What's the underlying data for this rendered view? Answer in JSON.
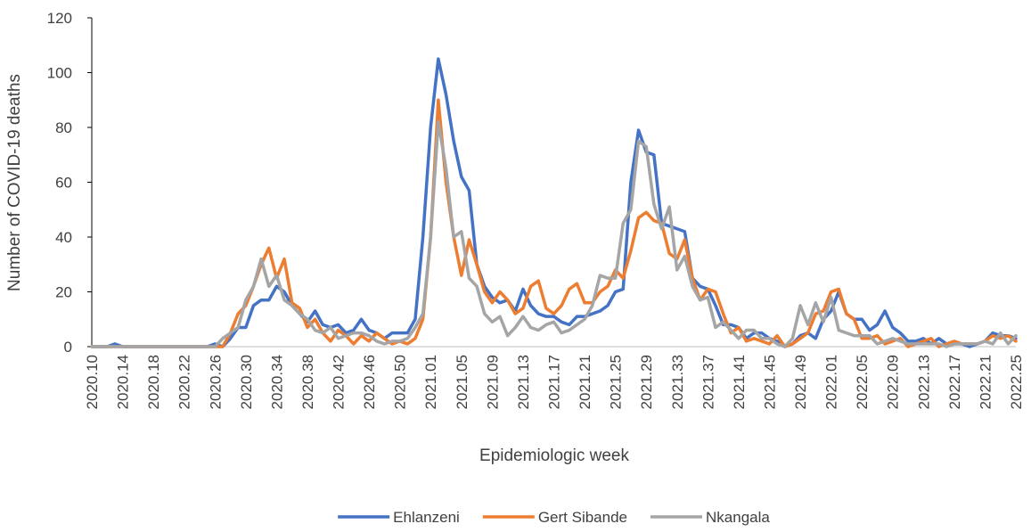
{
  "chart_data": {
    "type": "line",
    "x_label": "Epidemiologic week",
    "y_label": "Number of COVID-19 deaths",
    "categories": [
      "2020.10",
      null,
      null,
      null,
      "2020.14",
      null,
      null,
      null,
      "2020.18",
      null,
      null,
      null,
      "2020.22",
      null,
      null,
      null,
      "2020.26",
      null,
      null,
      null,
      "2020.30",
      null,
      null,
      null,
      "2020.34",
      null,
      null,
      null,
      "2020.38",
      null,
      null,
      null,
      "2020.42",
      null,
      null,
      null,
      "2020.46",
      null,
      null,
      null,
      "2020.50",
      null,
      null,
      null,
      "2021.01",
      null,
      null,
      null,
      "2021.05",
      null,
      null,
      null,
      "2021.09",
      null,
      null,
      null,
      "2021.13",
      null,
      null,
      null,
      "2021.17",
      null,
      null,
      null,
      "2021.21",
      null,
      null,
      null,
      "2021.25",
      null,
      null,
      null,
      "2021.29",
      null,
      null,
      null,
      "2021.33",
      null,
      null,
      null,
      "2021.37",
      null,
      null,
      null,
      "2021.41",
      null,
      null,
      null,
      "2021.45",
      null,
      null,
      null,
      "2021.49",
      null,
      null,
      null,
      "2022.01",
      null,
      null,
      null,
      "2022.05",
      null,
      null,
      null,
      "2022.09",
      null,
      null,
      null,
      "2022.13",
      null,
      null,
      null,
      "2022.17",
      null,
      null,
      null,
      "2022.21",
      null,
      null,
      null,
      "2022.25"
    ],
    "series": [
      {
        "name": "Ehlanzeni",
        "color": "#4472c4",
        "values": [
          0,
          0,
          0,
          1,
          0,
          0,
          0,
          0,
          0,
          0,
          0,
          0,
          0,
          0,
          0,
          0,
          1,
          0,
          3,
          7,
          7,
          15,
          17,
          17,
          22,
          20,
          15,
          12,
          9,
          13,
          8,
          7,
          8,
          5,
          6,
          10,
          6,
          5,
          3,
          5,
          5,
          5,
          10,
          40,
          80,
          105,
          92,
          75,
          62,
          57,
          30,
          22,
          18,
          16,
          17,
          13,
          21,
          15,
          12,
          11,
          11,
          9,
          8,
          11,
          11,
          12,
          13,
          15,
          20,
          21,
          60,
          79,
          71,
          70,
          45,
          44,
          43,
          42,
          25,
          22,
          21,
          15,
          8,
          8,
          7,
          3,
          5,
          5,
          3,
          2,
          0,
          1,
          4,
          5,
          3,
          10,
          13,
          20,
          12,
          10,
          10,
          6,
          8,
          13,
          7,
          5,
          2,
          2,
          3,
          1,
          3,
          1,
          1,
          1,
          0,
          1,
          2,
          5,
          4,
          4,
          3
        ]
      },
      {
        "name": "Gert Sibande",
        "color": "#ed7d31",
        "values": [
          0,
          0,
          0,
          0,
          0,
          0,
          0,
          0,
          0,
          0,
          0,
          0,
          0,
          0,
          0,
          0,
          0,
          0,
          5,
          12,
          15,
          22,
          30,
          36,
          25,
          32,
          16,
          14,
          7,
          10,
          5,
          2,
          6,
          4,
          1,
          4,
          2,
          5,
          3,
          1,
          2,
          1,
          3,
          10,
          40,
          90,
          60,
          40,
          26,
          39,
          30,
          20,
          16,
          20,
          17,
          12,
          14,
          22,
          24,
          14,
          12,
          15,
          21,
          23,
          16,
          16,
          20,
          22,
          28,
          25,
          35,
          47,
          49,
          46,
          45,
          34,
          32,
          39,
          25,
          17,
          21,
          20,
          12,
          5,
          7,
          2,
          3,
          2,
          1,
          4,
          0,
          1,
          3,
          5,
          12,
          13,
          20,
          21,
          12,
          10,
          3,
          3,
          4,
          1,
          2,
          3,
          0,
          1,
          2,
          3,
          0,
          1,
          2,
          1,
          1,
          1,
          2,
          4,
          3,
          4,
          2
        ]
      },
      {
        "name": "Nkangala",
        "color": "#a5a5a5",
        "values": [
          0,
          0,
          0,
          0,
          0,
          0,
          0,
          0,
          0,
          0,
          0,
          0,
          0,
          0,
          0,
          0,
          0,
          3,
          5,
          7,
          17,
          22,
          32,
          22,
          26,
          17,
          15,
          12,
          10,
          6,
          5,
          7,
          3,
          4,
          5,
          5,
          4,
          2,
          1,
          2,
          2,
          3,
          7,
          12,
          40,
          82,
          65,
          40,
          42,
          25,
          22,
          12,
          9,
          11,
          4,
          7,
          11,
          7,
          6,
          8,
          9,
          5,
          6,
          8,
          10,
          15,
          26,
          25,
          25,
          45,
          50,
          75,
          73,
          52,
          43,
          51,
          28,
          33,
          22,
          17,
          18,
          7,
          9,
          6,
          3,
          6,
          6,
          3,
          3,
          1,
          0,
          3,
          15,
          8,
          16,
          9,
          18,
          6,
          5,
          4,
          4,
          4,
          1,
          2,
          3,
          2,
          1,
          1,
          1,
          1,
          1,
          0,
          1,
          1,
          1,
          1,
          2,
          1,
          5,
          1,
          4
        ]
      }
    ],
    "ylim": [
      0,
      120
    ],
    "yticks": [
      0,
      20,
      40,
      60,
      80,
      100,
      120
    ],
    "grid": false,
    "legend": "bottom"
  }
}
